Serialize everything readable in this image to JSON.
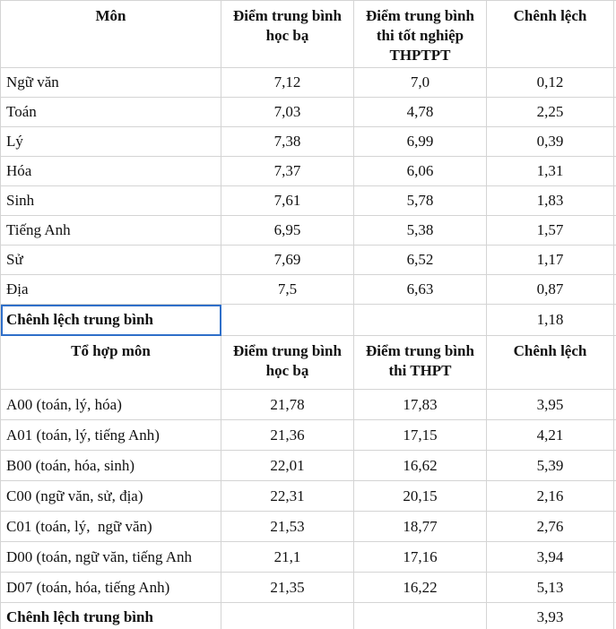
{
  "table1": {
    "header": [
      "Môn",
      "Điểm trung bình học bạ",
      "Điểm trung bình thi tốt nghiệp THPTPT",
      "Chênh lệch"
    ],
    "rows": [
      [
        "Ngữ văn",
        "7,12",
        "7,0",
        "0,12"
      ],
      [
        "Toán",
        "7,03",
        "4,78",
        "2,25"
      ],
      [
        "Lý",
        "7,38",
        "6,99",
        "0,39"
      ],
      [
        "Hóa",
        "7,37",
        "6,06",
        "1,31"
      ],
      [
        "Sinh",
        "7,61",
        "5,78",
        "1,83"
      ],
      [
        "Tiếng Anh",
        "6,95",
        "5,38",
        "1,57"
      ],
      [
        "Sử",
        "7,69",
        "6,52",
        "1,17"
      ],
      [
        "Địa",
        "7,5",
        "6,63",
        "0,87"
      ]
    ],
    "summary": {
      "label": "Chênh lệch trung bình",
      "value": "1,18"
    }
  },
  "table2": {
    "header": [
      "Tổ hợp môn",
      "Điểm trung bình học bạ",
      "Điểm trung bình thi THPT",
      "Chênh lệch"
    ],
    "rows": [
      [
        "A00 (toán, lý, hóa)",
        "21,78",
        "17,83",
        "3,95"
      ],
      [
        "A01 (toán, lý, tiếng Anh)",
        "21,36",
        "17,15",
        "4,21"
      ],
      [
        "B00 (toán, hóa, sinh)",
        "22,01",
        "16,62",
        "5,39"
      ],
      [
        "C00 (ngữ văn, sử, địa)",
        "22,31",
        "20,15",
        "2,16"
      ],
      [
        "C01 (toán, lý,  ngữ văn)",
        "21,53",
        "18,77",
        "2,76"
      ],
      [
        "D00 (toán, ngữ văn, tiếng Anh",
        "21,1",
        "17,16",
        "3,94"
      ],
      [
        "D07 (toán, hóa, tiếng Anh)",
        "21,35",
        "16,22",
        "5,13"
      ]
    ],
    "summary": {
      "label": "Chênh lệch trung bình",
      "value": "3,93"
    }
  }
}
